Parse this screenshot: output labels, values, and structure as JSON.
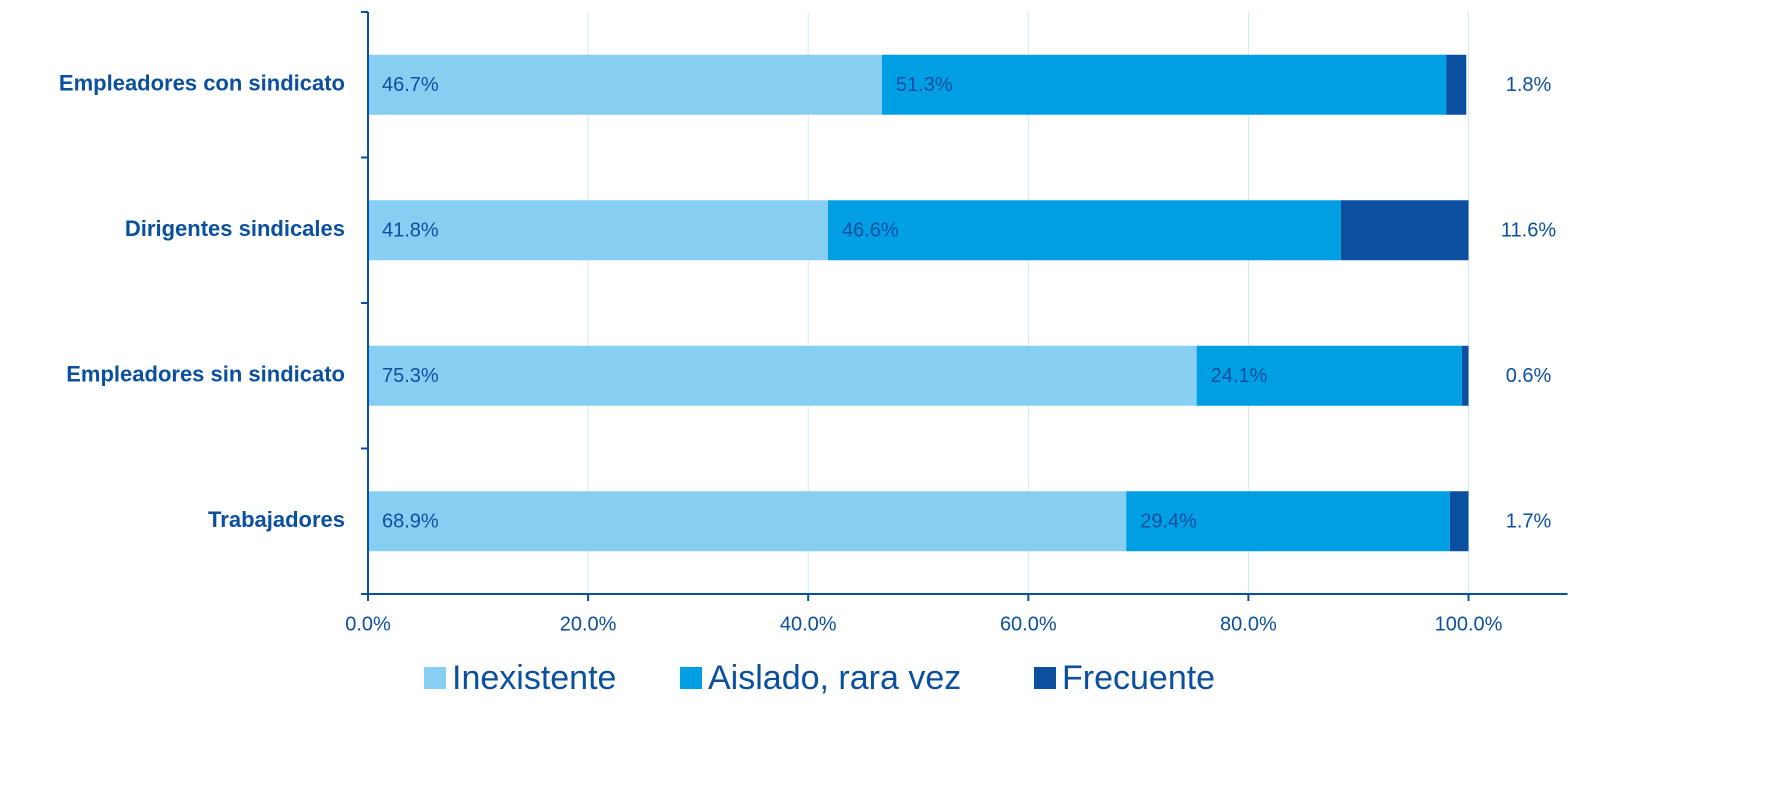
{
  "chart_data": {
    "type": "stacked-barh",
    "categories": [
      "Empleadores con sindicato",
      "Dirigentes sindicales",
      "Empleadores sin sindicato",
      "Trabajadores"
    ],
    "series": [
      {
        "name": "Inexistente",
        "color": "#87cff2",
        "values": [
          46.7,
          41.8,
          75.3,
          68.9
        ],
        "value_labels": [
          "46.7%",
          "41.8%",
          "75.3%",
          "68.9%"
        ]
      },
      {
        "name": "Aislado, rara vez",
        "color": "#009fe3",
        "values": [
          51.3,
          46.6,
          24.1,
          29.4
        ],
        "value_labels": [
          "51.3%",
          "46.6%",
          "24.1%",
          "29.4%"
        ]
      },
      {
        "name": "Frecuente",
        "color": "#0b4f9f",
        "values": [
          1.8,
          11.6,
          0.6,
          1.7
        ],
        "value_labels": [
          "1.8%",
          "11.6%",
          "0.6%",
          "1.7%"
        ]
      }
    ],
    "xlim": [
      0,
      109
    ],
    "xticks": [
      {
        "value": 0,
        "label": "0.0%"
      },
      {
        "value": 20,
        "label": "20.0%"
      },
      {
        "value": 40,
        "label": "40.0%"
      },
      {
        "value": 60,
        "label": "60.0%"
      },
      {
        "value": 80,
        "label": "80.0%"
      },
      {
        "value": 100,
        "label": "100.0%"
      }
    ],
    "grid": true,
    "legend": "bottom"
  }
}
